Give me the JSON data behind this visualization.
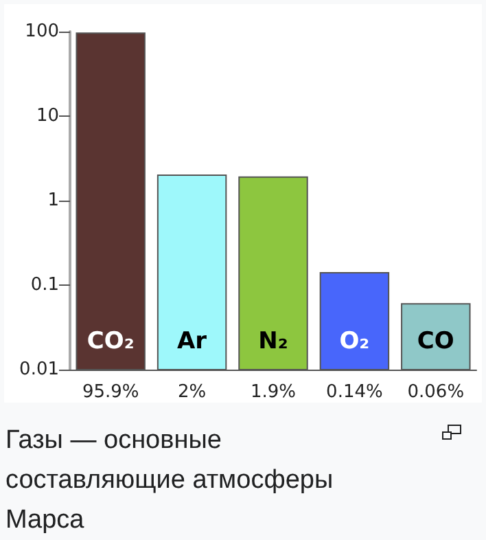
{
  "chart_data": {
    "type": "bar",
    "categories": [
      "CO₂",
      "Ar",
      "N₂",
      "O₂",
      "CO"
    ],
    "values": [
      95.9,
      2,
      1.9,
      0.14,
      0.06
    ],
    "colors": [
      "#5a3431",
      "#9ef8fb",
      "#8dc63f",
      "#4866fb",
      "#8fc8c8"
    ],
    "value_labels": [
      "95.9%",
      "2%",
      "1.9%",
      "0.14%",
      "0.06%"
    ],
    "log": true,
    "ylim": [
      0.01,
      100
    ],
    "yticks": [
      0.01,
      0.1,
      1,
      10,
      100
    ],
    "grid": false,
    "annotations": [
      "Газы — основные составляющие атмосферы Марса"
    ]
  }
}
